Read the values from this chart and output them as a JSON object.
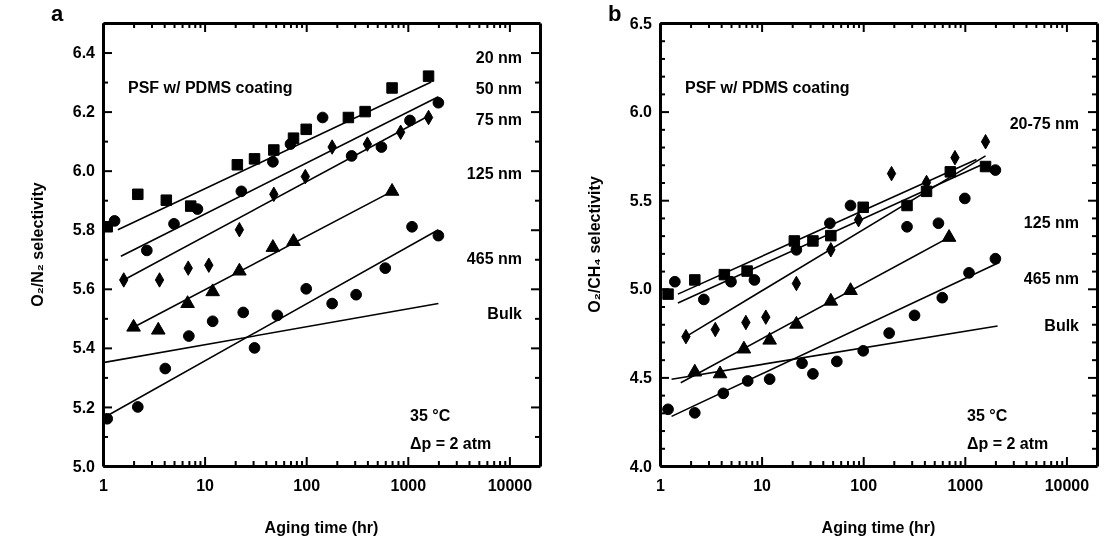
{
  "chart_data": [
    {
      "type": "scatter",
      "title": "a",
      "xlabel": "Aging time (hr)",
      "ylabel": "O₂/N₂ selectivity",
      "log": "x",
      "grid": false,
      "xlim": [
        1,
        20000
      ],
      "xticks": [
        1,
        {
          "value": 2,
          "label": null
        },
        {
          "value": 3,
          "label": null
        },
        {
          "value": 4,
          "label": null
        },
        {
          "value": 5,
          "label": null
        },
        {
          "value": 6,
          "label": null
        },
        {
          "value": 7,
          "label": null
        },
        {
          "value": 8,
          "label": null
        },
        {
          "value": 9,
          "label": null
        },
        10,
        {
          "value": 20,
          "label": null
        },
        {
          "value": 30,
          "label": null
        },
        {
          "value": 40,
          "label": null
        },
        {
          "value": 50,
          "label": null
        },
        {
          "value": 60,
          "label": null
        },
        {
          "value": 70,
          "label": null
        },
        {
          "value": 80,
          "label": null
        },
        {
          "value": 90,
          "label": null
        },
        100,
        {
          "value": 200,
          "label": null
        },
        {
          "value": 300,
          "label": null
        },
        {
          "value": 400,
          "label": null
        },
        {
          "value": 500,
          "label": null
        },
        {
          "value": 600,
          "label": null
        },
        {
          "value": 700,
          "label": null
        },
        {
          "value": 800,
          "label": null
        },
        {
          "value": 900,
          "label": null
        },
        1000,
        {
          "value": 2000,
          "label": null
        },
        {
          "value": 3000,
          "label": null
        },
        {
          "value": 4000,
          "label": null
        },
        {
          "value": 5000,
          "label": null
        },
        {
          "value": 6000,
          "label": null
        },
        {
          "value": 7000,
          "label": null
        },
        {
          "value": 8000,
          "label": null
        },
        {
          "value": 9000,
          "label": null
        },
        10000
      ],
      "ylim": [
        5.0,
        6.5
      ],
      "yticks": [
        {
          "value": 5.0,
          "label": "5.0"
        },
        {
          "value": 5.1,
          "label": null
        },
        {
          "value": 5.2,
          "label": "5.2"
        },
        {
          "value": 5.3,
          "label": null
        },
        {
          "value": 5.4,
          "label": "5.4"
        },
        {
          "value": 5.5,
          "label": null
        },
        {
          "value": 5.6,
          "label": "5.6"
        },
        {
          "value": 5.7,
          "label": null
        },
        {
          "value": 5.8,
          "label": "5.8"
        },
        {
          "value": 5.9,
          "label": null
        },
        {
          "value": 6.0,
          "label": "6.0"
        },
        {
          "value": 6.1,
          "label": null
        },
        {
          "value": 6.2,
          "label": "6.2"
        },
        {
          "value": 6.3,
          "label": null
        },
        {
          "value": 6.4,
          "label": "6.4"
        }
      ],
      "series": [
        {
          "type": "scatter",
          "marker": "square",
          "color": "#000000",
          "x": [
            1.1,
            2.2,
            4.2,
            7.3,
            21,
            31,
            48,
            75,
            100,
            260,
            380,
            700,
            1600
          ],
          "values": [
            5.81,
            5.92,
            5.9,
            5.88,
            6.02,
            6.04,
            6.07,
            6.11,
            6.14,
            6.18,
            6.2,
            6.28,
            6.32
          ]
        },
        {
          "type": "scatter",
          "marker": "circle",
          "color": "#000000",
          "x": [
            1.3,
            2.7,
            5,
            8.5,
            23,
            47,
            70,
            145,
            280,
            550,
            1050,
            2000
          ],
          "values": [
            5.83,
            5.73,
            5.82,
            5.87,
            5.93,
            6.03,
            6.09,
            6.18,
            6.05,
            6.08,
            6.17,
            6.23
          ]
        },
        {
          "type": "scatter",
          "marker": "diamond",
          "color": "#000000",
          "x": [
            1.6,
            3.6,
            6.9,
            11,
            22,
            48,
            98,
            180,
            400,
            850,
            1600
          ],
          "values": [
            5.63,
            5.63,
            5.67,
            5.68,
            5.8,
            5.92,
            5.98,
            6.08,
            6.09,
            6.13,
            6.18
          ]
        },
        {
          "type": "scatter",
          "marker": "triangle",
          "color": "#000000",
          "x": [
            2,
            3.5,
            6.8,
            12,
            22,
            47,
            75,
            700
          ],
          "values": [
            5.47,
            5.46,
            5.55,
            5.59,
            5.66,
            5.74,
            5.76,
            5.93
          ]
        },
        {
          "type": "scatter",
          "marker": "circle",
          "color": "#000000",
          "x": [
            1.1,
            2.2,
            4.1,
            7,
            12,
            24,
            31,
            52,
            100,
            180,
            310,
            600,
            1100,
            2000
          ],
          "values": [
            5.16,
            5.2,
            5.33,
            5.44,
            5.49,
            5.52,
            5.4,
            5.51,
            5.6,
            5.55,
            5.58,
            5.67,
            5.81,
            5.78
          ]
        },
        {
          "type": "line",
          "marker": "none",
          "color": "#000000",
          "x": [
            1.4,
            1700
          ],
          "values": [
            5.8,
            6.3
          ]
        },
        {
          "type": "line",
          "marker": "none",
          "color": "#000000",
          "x": [
            1.5,
            2000
          ],
          "values": [
            5.71,
            6.25
          ]
        },
        {
          "type": "line",
          "marker": "none",
          "color": "#000000",
          "x": [
            1.6,
            1700
          ],
          "values": [
            5.63,
            6.19
          ]
        },
        {
          "type": "line",
          "marker": "none",
          "color": "#000000",
          "x": [
            2,
            700
          ],
          "values": [
            5.47,
            5.93
          ]
        },
        {
          "type": "line",
          "marker": "none",
          "color": "#000000",
          "x": [
            1.1,
            2000
          ],
          "values": [
            5.17,
            5.8
          ]
        },
        {
          "type": "line",
          "marker": "none",
          "color": "#000000",
          "x": [
            1,
            2000
          ],
          "values": [
            5.35,
            5.55
          ]
        }
      ],
      "annotations": [
        "PSF w/ PDMS coating",
        "35 °C",
        "Δp = 2 atm",
        "20 nm",
        "50 nm",
        "75 nm",
        "125 nm",
        "465 nm",
        "Bulk"
      ]
    },
    {
      "type": "scatter",
      "title": "b",
      "xlabel": "Aging time (hr)",
      "ylabel": "O₂/CH₄ selectivity",
      "log": "x",
      "grid": false,
      "xlim": [
        1,
        20000
      ],
      "xticks": [
        1,
        {
          "value": 2,
          "label": null
        },
        {
          "value": 3,
          "label": null
        },
        {
          "value": 4,
          "label": null
        },
        {
          "value": 5,
          "label": null
        },
        {
          "value": 6,
          "label": null
        },
        {
          "value": 7,
          "label": null
        },
        {
          "value": 8,
          "label": null
        },
        {
          "value": 9,
          "label": null
        },
        10,
        {
          "value": 20,
          "label": null
        },
        {
          "value": 30,
          "label": null
        },
        {
          "value": 40,
          "label": null
        },
        {
          "value": 50,
          "label": null
        },
        {
          "value": 60,
          "label": null
        },
        {
          "value": 70,
          "label": null
        },
        {
          "value": 80,
          "label": null
        },
        {
          "value": 90,
          "label": null
        },
        100,
        {
          "value": 200,
          "label": null
        },
        {
          "value": 300,
          "label": null
        },
        {
          "value": 400,
          "label": null
        },
        {
          "value": 500,
          "label": null
        },
        {
          "value": 600,
          "label": null
        },
        {
          "value": 700,
          "label": null
        },
        {
          "value": 800,
          "label": null
        },
        {
          "value": 900,
          "label": null
        },
        1000,
        {
          "value": 2000,
          "label": null
        },
        {
          "value": 3000,
          "label": null
        },
        {
          "value": 4000,
          "label": null
        },
        {
          "value": 5000,
          "label": null
        },
        {
          "value": 6000,
          "label": null
        },
        {
          "value": 7000,
          "label": null
        },
        {
          "value": 8000,
          "label": null
        },
        {
          "value": 9000,
          "label": null
        },
        10000
      ],
      "ylim": [
        4.0,
        6.5
      ],
      "yticks": [
        {
          "value": 4.0,
          "label": "4.0"
        },
        {
          "value": 4.1,
          "label": null
        },
        {
          "value": 4.2,
          "label": null
        },
        {
          "value": 4.3,
          "label": null
        },
        {
          "value": 4.4,
          "label": null
        },
        {
          "value": 4.5,
          "label": "4.5"
        },
        {
          "value": 4.6,
          "label": null
        },
        {
          "value": 4.7,
          "label": null
        },
        {
          "value": 4.8,
          "label": null
        },
        {
          "value": 4.9,
          "label": null
        },
        {
          "value": 5.0,
          "label": "5.0"
        },
        {
          "value": 5.1,
          "label": null
        },
        {
          "value": 5.2,
          "label": null
        },
        {
          "value": 5.3,
          "label": null
        },
        {
          "value": 5.4,
          "label": null
        },
        {
          "value": 5.5,
          "label": "5.5"
        },
        {
          "value": 5.6,
          "label": null
        },
        {
          "value": 5.7,
          "label": null
        },
        {
          "value": 5.8,
          "label": null
        },
        {
          "value": 5.9,
          "label": null
        },
        {
          "value": 6.0,
          "label": "6.0"
        },
        {
          "value": 6.1,
          "label": null
        },
        {
          "value": 6.2,
          "label": null
        },
        {
          "value": 6.3,
          "label": null
        },
        {
          "value": 6.4,
          "label": null
        },
        {
          "value": 6.5,
          "label": "6.5"
        }
      ],
      "series": [
        {
          "type": "scatter",
          "marker": "square",
          "color": "#000000",
          "x": [
            1.2,
            2.2,
            4.3,
            7.2,
            21,
            32,
            48,
            100,
            270,
            420,
            720,
            1600
          ],
          "values": [
            4.97,
            5.05,
            5.08,
            5.1,
            5.27,
            5.27,
            5.3,
            5.46,
            5.47,
            5.55,
            5.66,
            5.69
          ]
        },
        {
          "type": "scatter",
          "marker": "circle",
          "color": "#000000",
          "x": [
            1.4,
            2.7,
            5,
            8.5,
            22,
            47,
            75,
            270,
            550,
            1000,
            2000
          ],
          "values": [
            5.04,
            4.94,
            5.04,
            5.05,
            5.22,
            5.37,
            5.47,
            5.35,
            5.37,
            5.51,
            5.67
          ]
        },
        {
          "type": "scatter",
          "marker": "diamond",
          "color": "#000000",
          "x": [
            1.8,
            3.5,
            7,
            11,
            22,
            48,
            90,
            190,
            420,
            800,
            1600
          ],
          "values": [
            4.73,
            4.77,
            4.81,
            4.84,
            5.03,
            5.22,
            5.39,
            5.65,
            5.6,
            5.74,
            5.83
          ]
        },
        {
          "type": "scatter",
          "marker": "triangle",
          "color": "#000000",
          "x": [
            2.2,
            3.9,
            6.7,
            12,
            22,
            48,
            75,
            700
          ],
          "values": [
            4.53,
            4.52,
            4.66,
            4.71,
            4.8,
            4.93,
            4.99,
            5.29
          ]
        },
        {
          "type": "scatter",
          "marker": "circle",
          "color": "#000000",
          "x": [
            1.2,
            2.2,
            4.2,
            7.3,
            12,
            25,
            32,
            55,
            100,
            180,
            320,
            600,
            1100,
            2000
          ],
          "values": [
            4.32,
            4.3,
            4.41,
            4.48,
            4.49,
            4.58,
            4.52,
            4.59,
            4.65,
            4.75,
            4.85,
            4.95,
            5.09,
            5.17
          ]
        },
        {
          "type": "line",
          "marker": "none",
          "color": "#000000",
          "x": [
            1.5,
            1300
          ],
          "values": [
            4.97,
            5.73
          ]
        },
        {
          "type": "line",
          "marker": "none",
          "color": "#000000",
          "x": [
            1.5,
            1600
          ],
          "values": [
            4.92,
            5.71
          ]
        },
        {
          "type": "line",
          "marker": "none",
          "color": "#000000",
          "x": [
            1.8,
            1600
          ],
          "values": [
            4.73,
            5.75
          ]
        },
        {
          "type": "line",
          "marker": "none",
          "color": "#000000",
          "x": [
            1.6,
            700
          ],
          "values": [
            4.47,
            5.29
          ]
        },
        {
          "type": "line",
          "marker": "none",
          "color": "#000000",
          "x": [
            1.3,
            2200
          ],
          "values": [
            4.28,
            5.15
          ]
        },
        {
          "type": "line",
          "marker": "none",
          "color": "#000000",
          "x": [
            1.3,
            2100
          ],
          "values": [
            4.49,
            4.79
          ]
        }
      ],
      "annotations": [
        "PSF w/ PDMS coating",
        "35 °C",
        "Δp = 2 atm",
        "20-75 nm",
        "125 nm",
        "465 nm",
        "Bulk"
      ]
    }
  ]
}
